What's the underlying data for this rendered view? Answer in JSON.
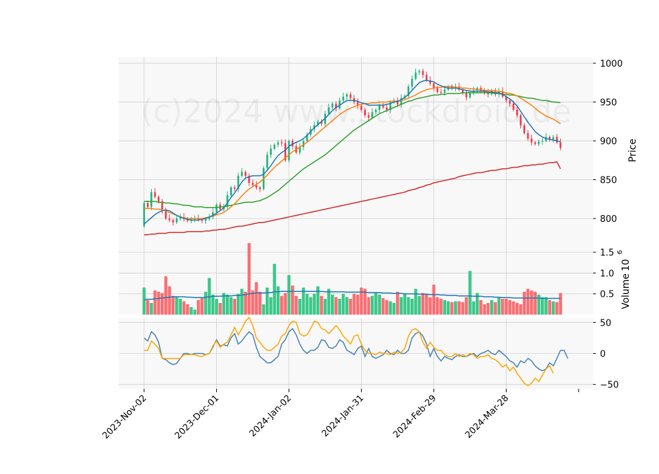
{
  "watermark": "(c)2024 www.stockdroid.de",
  "colors": {
    "up": "#26a69a",
    "up_candle": "#1db37a",
    "down": "#f0394b",
    "vol_up": "#3cc88a",
    "vol_down": "#fb6e72",
    "ma_short": "#1f77b4",
    "ma_mid": "#ff7f0e",
    "ma_long": "#2ca02c",
    "ma_200": "#d62728",
    "osc_a": "#4682b4",
    "osc_b": "#ffa500",
    "panel_bg": "#f8f8f8",
    "grid": "#d0d0d0"
  },
  "chart_data": [
    {
      "panel": "price",
      "type": "candlestick",
      "ylabel": "Price",
      "ylim": [
        770,
        1008
      ],
      "yticks": [
        800,
        850,
        900,
        950,
        1000
      ],
      "x_tick_labels": [
        "2023-Nov-02",
        "2023-Dec-01",
        "2024-Jan-02",
        "2024-Jan-31",
        "2024-Feb-29",
        "2024-Mar-28"
      ],
      "x_tick_index": [
        0,
        20,
        40,
        60,
        80,
        100
      ],
      "x_range": [
        -7,
        124
      ],
      "close": [
        820,
        815,
        834,
        828,
        822,
        810,
        800,
        798,
        795,
        800,
        802,
        800,
        797,
        799,
        800,
        798,
        797,
        799,
        802,
        808,
        818,
        812,
        815,
        830,
        840,
        838,
        855,
        860,
        855,
        846,
        843,
        840,
        838,
        865,
        882,
        890,
        895,
        898,
        897,
        875,
        900,
        893,
        885,
        892,
        900,
        908,
        915,
        920,
        925,
        922,
        935,
        943,
        948,
        942,
        952,
        957,
        960,
        955,
        950,
        945,
        940,
        933,
        930,
        937,
        940,
        945,
        943,
        940,
        950,
        952,
        947,
        955,
        958,
        970,
        980,
        988,
        990,
        985,
        978,
        974,
        968,
        963,
        962,
        966,
        970,
        968,
        970,
        966,
        962,
        956,
        962,
        965,
        968,
        964,
        962,
        960,
        965,
        960,
        964,
        957,
        952,
        948,
        940,
        933,
        920,
        910,
        903,
        898,
        896,
        899,
        900,
        905,
        902,
        905,
        898,
        891
      ],
      "ma_short": [
        793,
        797,
        801,
        805,
        808,
        810,
        811,
        810,
        807,
        804,
        802,
        800,
        799,
        798,
        798,
        798,
        799,
        800,
        802,
        804,
        807,
        810,
        814,
        820,
        827,
        833,
        840,
        847,
        852,
        854,
        855,
        855,
        855,
        857,
        862,
        868,
        875,
        881,
        885,
        888,
        893,
        896,
        898,
        900,
        903,
        907,
        912,
        917,
        921,
        925,
        929,
        934,
        939,
        943,
        946,
        949,
        952,
        952,
        952,
        951,
        949,
        948,
        946,
        946,
        946,
        946,
        946,
        947,
        948,
        950,
        951,
        953,
        956,
        960,
        965,
        970,
        975,
        977,
        978,
        977,
        976,
        973,
        971,
        969,
        968,
        968,
        968,
        967,
        966,
        965,
        964,
        964,
        964,
        964,
        964,
        963,
        963,
        962,
        962,
        960,
        957,
        954,
        950,
        945,
        938,
        931,
        924,
        918,
        912,
        908,
        905,
        903,
        902,
        901,
        900,
        899
      ],
      "ma_mid": [
        813,
        813,
        813,
        812,
        812,
        811,
        810,
        808,
        806,
        804,
        802,
        801,
        800,
        800,
        800,
        800,
        800,
        801,
        802,
        803,
        805,
        806,
        808,
        811,
        815,
        819,
        824,
        829,
        834,
        838,
        841,
        844,
        847,
        851,
        856,
        861,
        866,
        870,
        874,
        878,
        882,
        886,
        889,
        892,
        895,
        898,
        902,
        906,
        910,
        914,
        918,
        922,
        926,
        930,
        934,
        937,
        940,
        942,
        944,
        946,
        947,
        948,
        948,
        949,
        949,
        950,
        950,
        950,
        951,
        951,
        951,
        952,
        953,
        955,
        957,
        959,
        962,
        964,
        966,
        967,
        968,
        969,
        969,
        970,
        970,
        970,
        969,
        969,
        968,
        968,
        967,
        967,
        966,
        966,
        965,
        965,
        965,
        964,
        964,
        963,
        962,
        961,
        960,
        958,
        955,
        952,
        949,
        946,
        942,
        938,
        935,
        932,
        930,
        928,
        925,
        922
      ],
      "ma_long": [
        822,
        822,
        822,
        822,
        821,
        821,
        820,
        820,
        819,
        819,
        818,
        817,
        817,
        816,
        815,
        815,
        815,
        814,
        814,
        814,
        814,
        815,
        815,
        816,
        817,
        818,
        819,
        820,
        821,
        821,
        821,
        822,
        823,
        825,
        827,
        830,
        833,
        836,
        840,
        844,
        848,
        852,
        856,
        860,
        864,
        867,
        870,
        873,
        876,
        879,
        882,
        886,
        890,
        894,
        898,
        902,
        906,
        910,
        914,
        917,
        920,
        923,
        926,
        929,
        932,
        935,
        937,
        939,
        941,
        943,
        945,
        947,
        949,
        951,
        952,
        954,
        955,
        956,
        957,
        958,
        959,
        959,
        960,
        960,
        961,
        961,
        961,
        961,
        962,
        962,
        962,
        962,
        962,
        962,
        962,
        962,
        962,
        961,
        961,
        960,
        960,
        959,
        959,
        958,
        957,
        956,
        955,
        955,
        954,
        953,
        952,
        952,
        951,
        950,
        950,
        949
      ],
      "ma_200": [
        779,
        779,
        780,
        780,
        781,
        781,
        781,
        782,
        782,
        782,
        782,
        782,
        783,
        783,
        783,
        783,
        783,
        784,
        784,
        785,
        785,
        786,
        786,
        787,
        788,
        789,
        790,
        790,
        791,
        792,
        793,
        794,
        795,
        795,
        796,
        797,
        798,
        799,
        800,
        801,
        802,
        803,
        804,
        805,
        806,
        807,
        808,
        809,
        810,
        811,
        812,
        813,
        814,
        815,
        816,
        817,
        818,
        819,
        820,
        821,
        822,
        823,
        824,
        825,
        826,
        827,
        828,
        829,
        830,
        831,
        832,
        833,
        834,
        836,
        837,
        838,
        840,
        841,
        843,
        844,
        846,
        847,
        848,
        849,
        850,
        851,
        852,
        854,
        855,
        856,
        857,
        858,
        859,
        859,
        860,
        861,
        862,
        862,
        863,
        864,
        864,
        865,
        866,
        866,
        867,
        868,
        868,
        869,
        869,
        870,
        870,
        871,
        872,
        872,
        873,
        864
      ]
    },
    {
      "panel": "volume",
      "type": "bar",
      "ylabel": "Volume",
      "yscale_label": "10^6",
      "ylim": [
        0,
        1.75
      ],
      "yticks": [
        0.5,
        1.0,
        1.5
      ],
      "ytick_labels": [
        "0.5",
        "1.0",
        "1.5"
      ],
      "values": [
        0.65,
        0.35,
        0.28,
        0.58,
        0.55,
        0.52,
        0.92,
        0.68,
        0.45,
        0.42,
        0.38,
        0.32,
        0.25,
        0.18,
        0.12,
        0.35,
        0.42,
        0.55,
        0.88,
        0.48,
        0.38,
        0.28,
        0.52,
        0.48,
        0.42,
        0.38,
        0.5,
        0.62,
        0.55,
        1.72,
        0.58,
        0.78,
        0.55,
        0.25,
        0.65,
        0.42,
        1.22,
        0.68,
        0.45,
        0.52,
        0.95,
        0.7,
        0.45,
        0.38,
        0.65,
        0.5,
        0.42,
        0.5,
        0.68,
        0.45,
        0.38,
        0.62,
        0.48,
        0.42,
        0.38,
        0.5,
        0.42,
        0.38,
        0.5,
        0.48,
        0.65,
        0.62,
        0.42,
        0.45,
        0.52,
        0.48,
        0.4,
        0.35,
        0.32,
        0.28,
        0.55,
        0.42,
        0.5,
        0.42,
        0.38,
        0.62,
        0.45,
        0.52,
        0.48,
        0.42,
        0.72,
        0.42,
        0.38,
        0.35,
        0.32,
        0.3,
        0.32,
        0.32,
        0.3,
        0.42,
        1.05,
        0.32,
        0.52,
        0.35,
        0.25,
        0.28,
        0.35,
        0.3,
        0.42,
        0.38,
        0.38,
        0.35,
        0.32,
        0.28,
        0.25,
        0.55,
        0.62,
        0.58,
        0.55,
        0.48,
        0.42,
        0.42,
        0.35,
        0.32,
        0.3,
        0.52
      ],
      "ma": [
        0.36,
        0.37,
        0.37,
        0.38,
        0.39,
        0.4,
        0.41,
        0.42,
        0.43,
        0.43,
        0.43,
        0.43,
        0.42,
        0.42,
        0.41,
        0.41,
        0.41,
        0.42,
        0.43,
        0.44,
        0.44,
        0.44,
        0.45,
        0.45,
        0.45,
        0.46,
        0.46,
        0.47,
        0.48,
        0.5,
        0.51,
        0.52,
        0.52,
        0.52,
        0.53,
        0.53,
        0.55,
        0.55,
        0.56,
        0.56,
        0.56,
        0.56,
        0.56,
        0.56,
        0.56,
        0.56,
        0.56,
        0.56,
        0.56,
        0.56,
        0.55,
        0.55,
        0.55,
        0.55,
        0.55,
        0.55,
        0.54,
        0.54,
        0.54,
        0.54,
        0.54,
        0.54,
        0.53,
        0.53,
        0.53,
        0.53,
        0.52,
        0.52,
        0.52,
        0.51,
        0.51,
        0.51,
        0.5,
        0.5,
        0.5,
        0.5,
        0.49,
        0.49,
        0.49,
        0.48,
        0.48,
        0.48,
        0.47,
        0.47,
        0.46,
        0.46,
        0.46,
        0.45,
        0.45,
        0.45,
        0.45,
        0.44,
        0.44,
        0.44,
        0.43,
        0.43,
        0.43,
        0.42,
        0.42,
        0.41,
        0.41,
        0.41,
        0.4,
        0.4,
        0.4,
        0.4,
        0.4,
        0.4,
        0.4,
        0.4,
        0.39,
        0.39,
        0.39,
        0.39,
        0.39,
        0.39
      ]
    },
    {
      "panel": "oscillator",
      "type": "line",
      "ylim": [
        -57,
        57
      ],
      "yticks": [
        50,
        0,
        -50
      ],
      "ytick_labels": [
        "50",
        "0",
        "−50"
      ],
      "series_a": [
        25,
        20,
        35,
        30,
        18,
        -8,
        -10,
        -15,
        -18,
        -16,
        -8,
        0,
        0,
        -2,
        0,
        0,
        0,
        -2,
        0,
        10,
        22,
        12,
        14,
        12,
        25,
        32,
        15,
        20,
        28,
        35,
        30,
        10,
        -5,
        -10,
        -15,
        -15,
        -10,
        -5,
        15,
        22,
        35,
        40,
        30,
        15,
        5,
        0,
        5,
        5,
        10,
        22,
        20,
        10,
        8,
        12,
        22,
        18,
        5,
        2,
        -2,
        8,
        12,
        -5,
        8,
        -5,
        -8,
        -5,
        -2,
        5,
        0,
        -2,
        5,
        0,
        0,
        5,
        25,
        32,
        35,
        28,
        15,
        -5,
        8,
        -5,
        -12,
        -5,
        -8,
        -10,
        -5,
        -2,
        -5,
        -5,
        -2,
        0,
        -5,
        0,
        2,
        5,
        0,
        -2,
        5,
        0,
        -5,
        -12,
        -15,
        -22,
        -12,
        -15,
        -8,
        -12,
        -20,
        -25,
        -28,
        -25,
        -15,
        -20,
        -8,
        5,
        5,
        -8
      ],
      "series_b": [
        5,
        5,
        20,
        15,
        8,
        -8,
        -8,
        -8,
        -8,
        -8,
        -8,
        -2,
        -2,
        -2,
        -2,
        -4,
        -5,
        -2,
        0,
        12,
        20,
        10,
        15,
        18,
        30,
        42,
        30,
        40,
        52,
        58,
        45,
        25,
        18,
        10,
        5,
        5,
        10,
        15,
        28,
        32,
        45,
        52,
        50,
        32,
        28,
        30,
        40,
        52,
        50,
        40,
        38,
        32,
        38,
        45,
        38,
        28,
        22,
        15,
        28,
        30,
        15,
        5,
        0,
        0,
        -2,
        2,
        0,
        0,
        -2,
        2,
        0,
        2,
        8,
        28,
        38,
        40,
        35,
        18,
        8,
        18,
        10,
        5,
        5,
        -2,
        -5,
        -5,
        0,
        -5,
        -2,
        -5,
        0,
        -2,
        -8,
        -5,
        -5,
        -2,
        -8,
        -10,
        -15,
        -22,
        -18,
        -28,
        -22,
        -32,
        -40,
        -48,
        -52,
        -48,
        -40,
        -45,
        -35,
        -25,
        -20,
        -32
      ]
    }
  ]
}
